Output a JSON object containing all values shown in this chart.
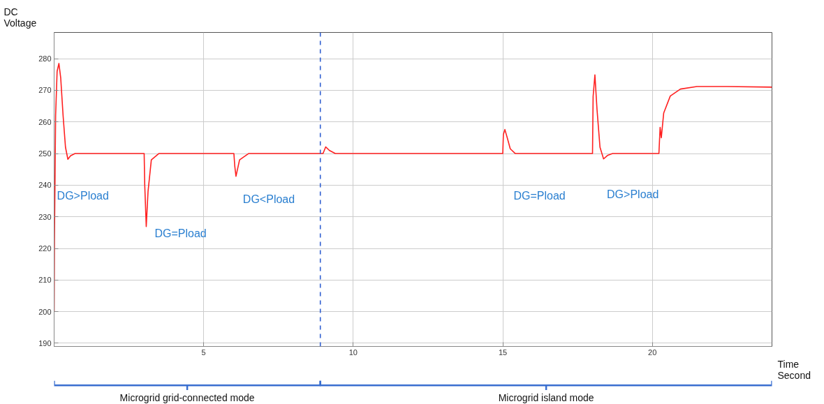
{
  "chart_data": {
    "type": "line",
    "xlabel": "Time Second",
    "ylabel": "DC Voltage",
    "xlim": [
      0,
      24
    ],
    "ylim": [
      189,
      288.3
    ],
    "xticks": [
      5,
      10,
      15,
      20
    ],
    "yticks": [
      190,
      200,
      210,
      220,
      230,
      240,
      250,
      260,
      270,
      280
    ],
    "grid": true,
    "marker": "none",
    "line_style": "solid",
    "series": [
      {
        "color": "#ff2020",
        "x": [
          0.0,
          0.01,
          0.05,
          0.1,
          0.16,
          0.22,
          0.3,
          0.38,
          0.46,
          0.55,
          0.7,
          3.01,
          3.03,
          3.08,
          3.14,
          3.25,
          3.5,
          6.01,
          6.04,
          6.08,
          6.2,
          6.5,
          8.99,
          9.08,
          9.2,
          9.4,
          15.0,
          15.02,
          15.07,
          15.15,
          15.25,
          15.42,
          18.0,
          18.02,
          18.08,
          18.15,
          18.25,
          18.37,
          18.5,
          18.67,
          20.22,
          20.26,
          20.3,
          20.38,
          20.6,
          20.94,
          21.49,
          22.5,
          24.0
        ],
        "values": [
          200,
          222,
          262,
          276,
          278.5,
          274,
          262,
          252,
          248.2,
          249.3,
          250,
          250,
          240,
          226.9,
          238,
          248,
          250,
          250,
          246,
          242.8,
          248,
          250,
          250,
          252.1,
          251,
          250,
          250,
          256,
          257.6,
          255,
          251.5,
          250,
          250,
          268,
          274.9,
          264,
          252,
          248.3,
          249.4,
          250,
          250,
          258.3,
          255,
          262.8,
          268.2,
          270.4,
          271.2,
          271.2,
          271.0
        ]
      }
    ],
    "ref_lines": [
      {
        "axis": "x",
        "value": 8.9,
        "color": "#2f5fd0",
        "line_style": "dashed"
      }
    ],
    "annotations": [
      "DG>Pload",
      "DG=Pload",
      "DG<Pload",
      "DG=Pload",
      "DG>Pload",
      "Microgrid grid-connected mode",
      "Microgrid island mode"
    ]
  }
}
